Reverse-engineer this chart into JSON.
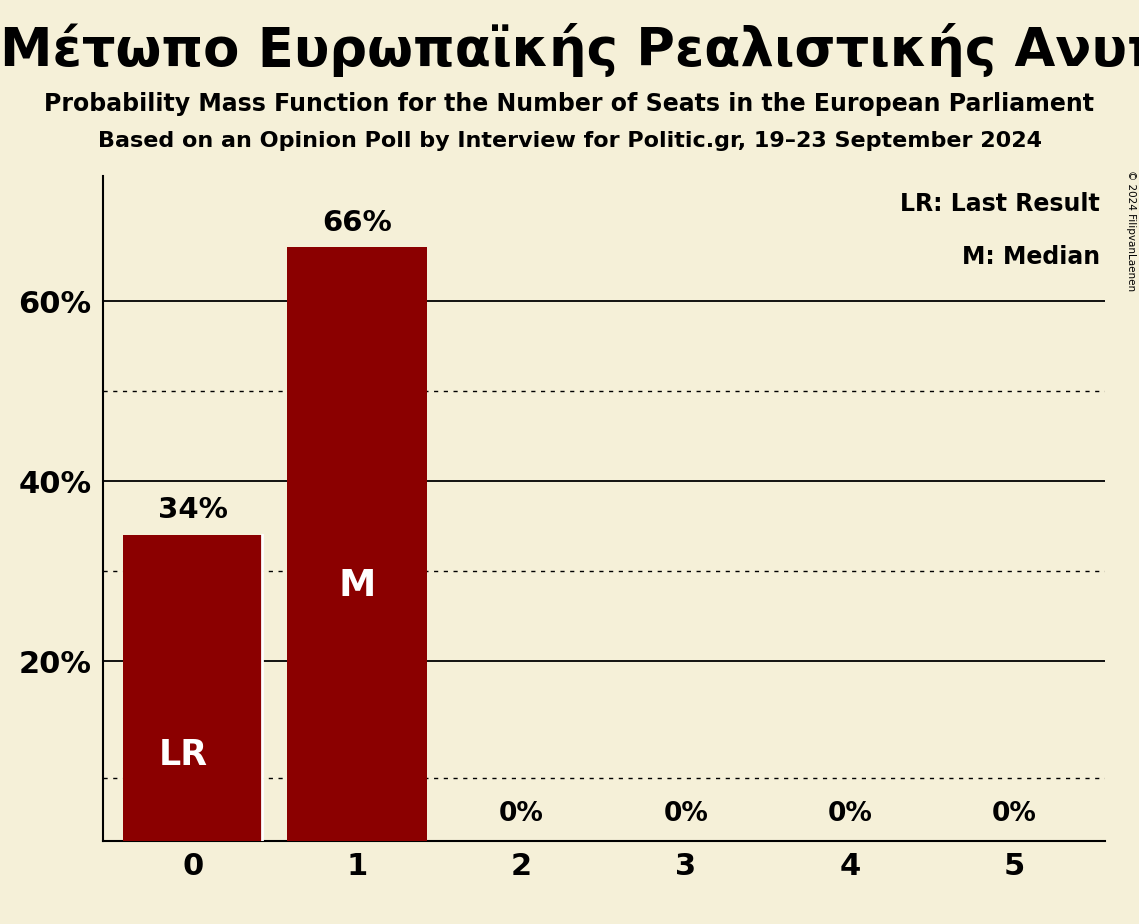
{
  "title_greek": "Μέτωπο Ευρωπαϊκής Ρεαλιστικής Ανυπακοής (GUE/NGL)",
  "subtitle1": "Probability Mass Function for the Number of Seats in the European Parliament",
  "subtitle2": "Based on an Opinion Poll by Interview for Politic.gr, 19–23 September 2024",
  "categories": [
    0,
    1,
    2,
    3,
    4,
    5
  ],
  "values": [
    0.34,
    0.66,
    0.0,
    0.0,
    0.0,
    0.0
  ],
  "bar_color": "#8B0000",
  "background_color": "#F5F0D8",
  "legend_lr": "LR: Last Result",
  "legend_m": "M: Median",
  "bar_labels": [
    "34%",
    "66%",
    "0%",
    "0%",
    "0%",
    "0%"
  ],
  "inside_labels": [
    "LR",
    "M",
    "",
    "",
    "",
    ""
  ],
  "ylim": [
    0,
    0.74
  ],
  "solid_lines": [
    0.2,
    0.4,
    0.6
  ],
  "dotted_lines": [
    0.5,
    0.3,
    0.07
  ],
  "copyright": "© 2024 FilipvanLaenen"
}
